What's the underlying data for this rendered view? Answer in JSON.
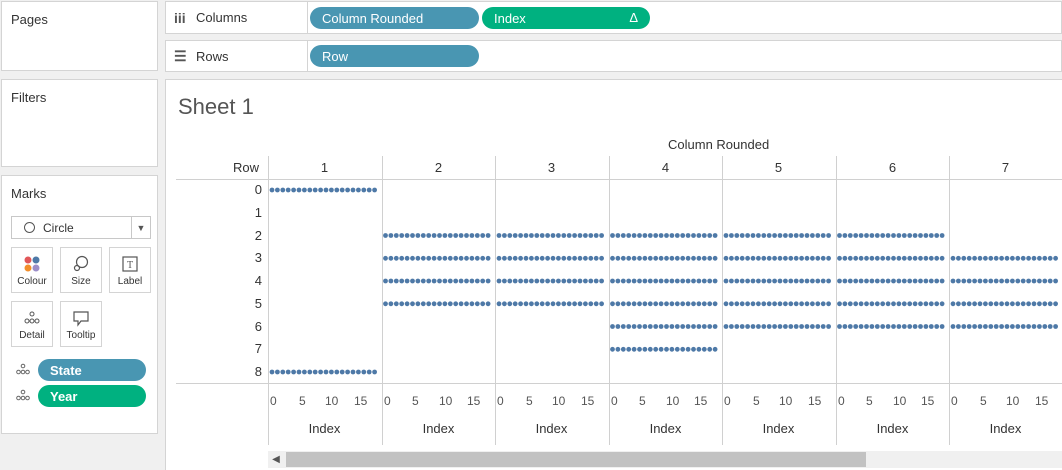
{
  "pages": {
    "title": "Pages"
  },
  "filters": {
    "title": "Filters"
  },
  "marks": {
    "title": "Marks",
    "mark_type": "Circle",
    "buttons": [
      "Colour",
      "Size",
      "Label",
      "Detail",
      "Tooltip"
    ],
    "fields": [
      {
        "name": "State",
        "color": "#4996b2",
        "icon": "detail-icon"
      },
      {
        "name": "Year",
        "color": "#00b180",
        "icon": "detail-icon"
      }
    ]
  },
  "columns_shelf": {
    "label": "Columns",
    "pills": [
      {
        "text": "Column Rounded",
        "color": "#4996b2"
      },
      {
        "text": "Index",
        "color": "#00b180",
        "delta": "Δ"
      }
    ]
  },
  "rows_shelf": {
    "label": "Rows",
    "pills": [
      {
        "text": "Row",
        "color": "#4996b2"
      }
    ]
  },
  "sheet": {
    "title": "Sheet 1"
  },
  "chart_data": {
    "type": "scatter",
    "column_axis_title": "Column Rounded",
    "row_header": "Row",
    "columns": [
      "1",
      "2",
      "3",
      "4",
      "5",
      "6",
      "7"
    ],
    "rows": [
      "0",
      "1",
      "2",
      "3",
      "4",
      "5",
      "6",
      "7",
      "8"
    ],
    "x_axis_title": "Index",
    "x_ticks": [
      "0",
      "5",
      "10",
      "15"
    ],
    "dot_color": "#4e79a7",
    "cells": [
      {
        "column": "1",
        "rows": [
          "0",
          "8"
        ],
        "index_range": [
          1,
          20
        ]
      },
      {
        "column": "2",
        "rows": [
          "2",
          "3",
          "4",
          "5"
        ],
        "index_range": [
          1,
          20
        ]
      },
      {
        "column": "3",
        "rows": [
          "2",
          "3",
          "4",
          "5"
        ],
        "index_range": [
          1,
          20
        ]
      },
      {
        "column": "4",
        "rows": [
          "2",
          "3",
          "4",
          "5",
          "6",
          "7"
        ],
        "index_range": [
          1,
          20
        ]
      },
      {
        "column": "5",
        "rows": [
          "2",
          "3",
          "4",
          "5",
          "6"
        ],
        "index_range": [
          1,
          20
        ]
      },
      {
        "column": "6",
        "rows": [
          "2",
          "3",
          "4",
          "5",
          "6"
        ],
        "index_range": [
          1,
          20
        ]
      },
      {
        "column": "7",
        "rows": [
          "3",
          "4",
          "5",
          "6"
        ],
        "index_range": [
          1,
          20
        ]
      }
    ]
  }
}
